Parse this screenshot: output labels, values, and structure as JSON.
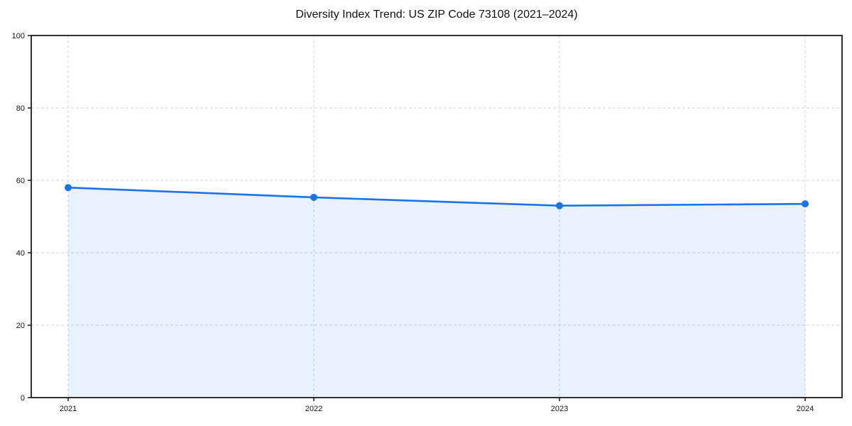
{
  "chart_data": {
    "type": "area",
    "title": "Diversity Index Trend: US ZIP Code 73108 (2021–2024)",
    "series_name": "Diversity Index",
    "categories": [
      "2021",
      "2022",
      "2023",
      "2024"
    ],
    "values": [
      58.0,
      55.3,
      53.0,
      53.5
    ],
    "xlabel": "",
    "ylabel": "",
    "ylim": [
      0,
      100
    ],
    "yticks": [
      0,
      20,
      40,
      60,
      80,
      100
    ],
    "grid": true,
    "grid_style": "dashed",
    "legend_position": "none",
    "colors": {
      "line": "#1a73e8",
      "marker": "#1a73e8",
      "fill": "#1a73e8",
      "fill_opacity": 0.1,
      "grid": "#dcdcdc",
      "axis": "#1a1a1a",
      "text": "#111111",
      "background": "#ffffff"
    }
  }
}
